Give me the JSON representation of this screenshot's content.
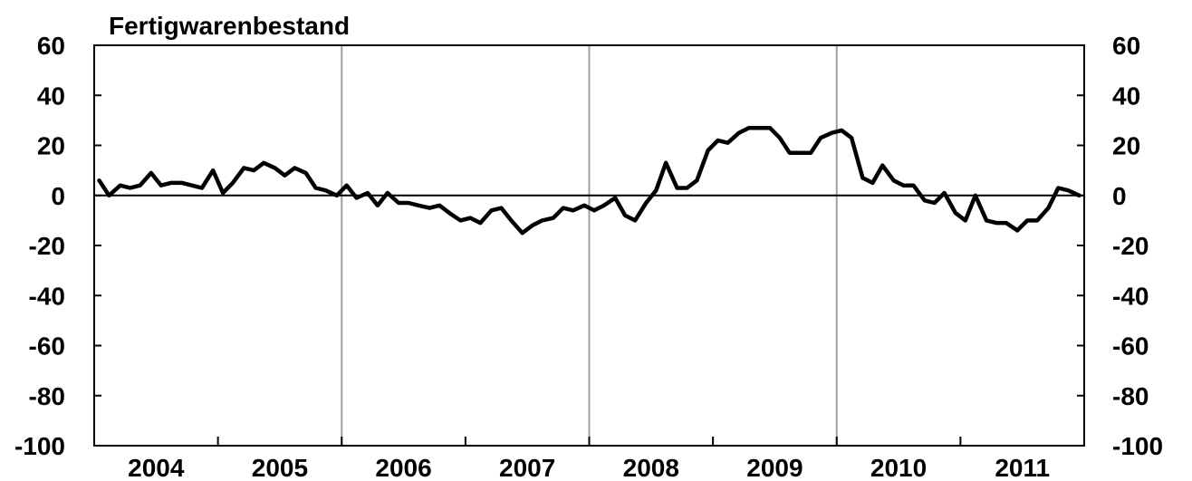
{
  "chart_data": {
    "type": "line",
    "title": "Fertigwarenbestand",
    "ylim": [
      -100,
      60
    ],
    "yticks": [
      60,
      40,
      20,
      0,
      -20,
      -40,
      -60,
      -80,
      -100
    ],
    "xlim": [
      2004.0,
      2012.0
    ],
    "year_labels": [
      "2004",
      "2005",
      "2006",
      "2007",
      "2008",
      "2009",
      "2010",
      "2011"
    ],
    "vertical_gridlines_at": [
      2006,
      2008,
      2010
    ],
    "grid": "vertical lines at 2006, 2008, 2010; horizontal line at 0",
    "series": [
      {
        "color": "#000000",
        "x": [
          2004.04,
          2004.12,
          2004.21,
          2004.29,
          2004.37,
          2004.46,
          2004.54,
          2004.62,
          2004.71,
          2004.79,
          2004.87,
          2004.96,
          2005.04,
          2005.12,
          2005.21,
          2005.29,
          2005.37,
          2005.46,
          2005.54,
          2005.62,
          2005.71,
          2005.79,
          2005.87,
          2005.96,
          2006.04,
          2006.12,
          2006.21,
          2006.29,
          2006.37,
          2006.46,
          2006.54,
          2006.62,
          2006.71,
          2006.79,
          2006.87,
          2006.96,
          2007.04,
          2007.12,
          2007.21,
          2007.29,
          2007.37,
          2007.46,
          2007.54,
          2007.62,
          2007.71,
          2007.79,
          2007.87,
          2007.96,
          2008.04,
          2008.12,
          2008.21,
          2008.29,
          2008.37,
          2008.46,
          2008.54,
          2008.62,
          2008.71,
          2008.79,
          2008.87,
          2008.96,
          2009.04,
          2009.12,
          2009.21,
          2009.29,
          2009.37,
          2009.46,
          2009.54,
          2009.62,
          2009.71,
          2009.79,
          2009.87,
          2009.96,
          2010.04,
          2010.12,
          2010.21,
          2010.29,
          2010.37,
          2010.46,
          2010.54,
          2010.62,
          2010.71,
          2010.79,
          2010.87,
          2010.96,
          2011.04,
          2011.12,
          2011.21,
          2011.29,
          2011.37,
          2011.46,
          2011.54,
          2011.62,
          2011.71,
          2011.79,
          2011.87,
          2011.96
        ],
        "y": [
          6,
          0,
          4,
          3,
          4,
          9,
          4,
          5,
          5,
          4,
          3,
          10,
          1,
          5,
          11,
          10,
          13,
          11,
          8,
          11,
          9,
          3,
          2,
          0,
          4,
          -1,
          1,
          -4,
          1,
          -3,
          -3,
          -4,
          -5,
          -4,
          -7,
          -10,
          -9,
          -11,
          -6,
          -5,
          -10,
          -15,
          -12,
          -10,
          -9,
          -5,
          -6,
          -4,
          -6,
          -4,
          -1,
          -8,
          -10,
          -3,
          2,
          13,
          3,
          3,
          6,
          18,
          22,
          21,
          25,
          27,
          27,
          27,
          23,
          17,
          17,
          17,
          23,
          25,
          26,
          23,
          7,
          5,
          12,
          6,
          4,
          4,
          -2,
          -3,
          1,
          -7,
          -10,
          0,
          -10,
          -11,
          -11,
          -14,
          -10,
          -10,
          -5,
          3,
          2,
          0
        ]
      }
    ]
  }
}
